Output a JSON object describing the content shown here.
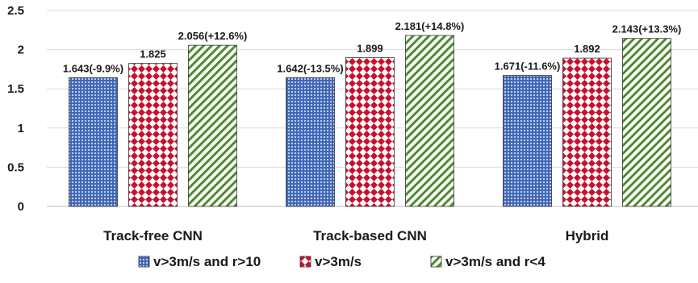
{
  "chart_data": {
    "type": "bar",
    "title": "",
    "xlabel": "",
    "ylabel": "",
    "ylim": [
      0,
      2.5
    ],
    "yticks": [
      "0",
      "0.5",
      "1",
      "1.5",
      "2",
      "2.5"
    ],
    "ytick_values": [
      0,
      0.5,
      1,
      1.5,
      2,
      2.5
    ],
    "grid": "horizontal",
    "legend_position": "bottom",
    "categories": [
      "Track-free CNN",
      "Track-based CNN",
      "Hybrid"
    ],
    "series": [
      {
        "name": "v>3m/s and r>10",
        "color": "#4a72c4",
        "pattern": "dots-blue",
        "values": [
          1.643,
          1.642,
          1.671
        ],
        "labels": [
          "1.643(-9.9%)",
          "1.642(-13.5%)",
          "1.671(-11.6%)"
        ]
      },
      {
        "name": "v>3m/s",
        "color": "#c8102e",
        "pattern": "checker-red",
        "values": [
          1.825,
          1.899,
          1.892
        ],
        "labels": [
          "1.825",
          "1.899",
          "1.892"
        ]
      },
      {
        "name": "v>3m/s and r<4",
        "color": "#4e8a2e",
        "pattern": "diagonal-green",
        "values": [
          2.056,
          2.181,
          2.143
        ],
        "labels": [
          "2.056(+12.6%)",
          "2.181(+14.8%)",
          "2.143(+13.3%)"
        ]
      }
    ]
  }
}
